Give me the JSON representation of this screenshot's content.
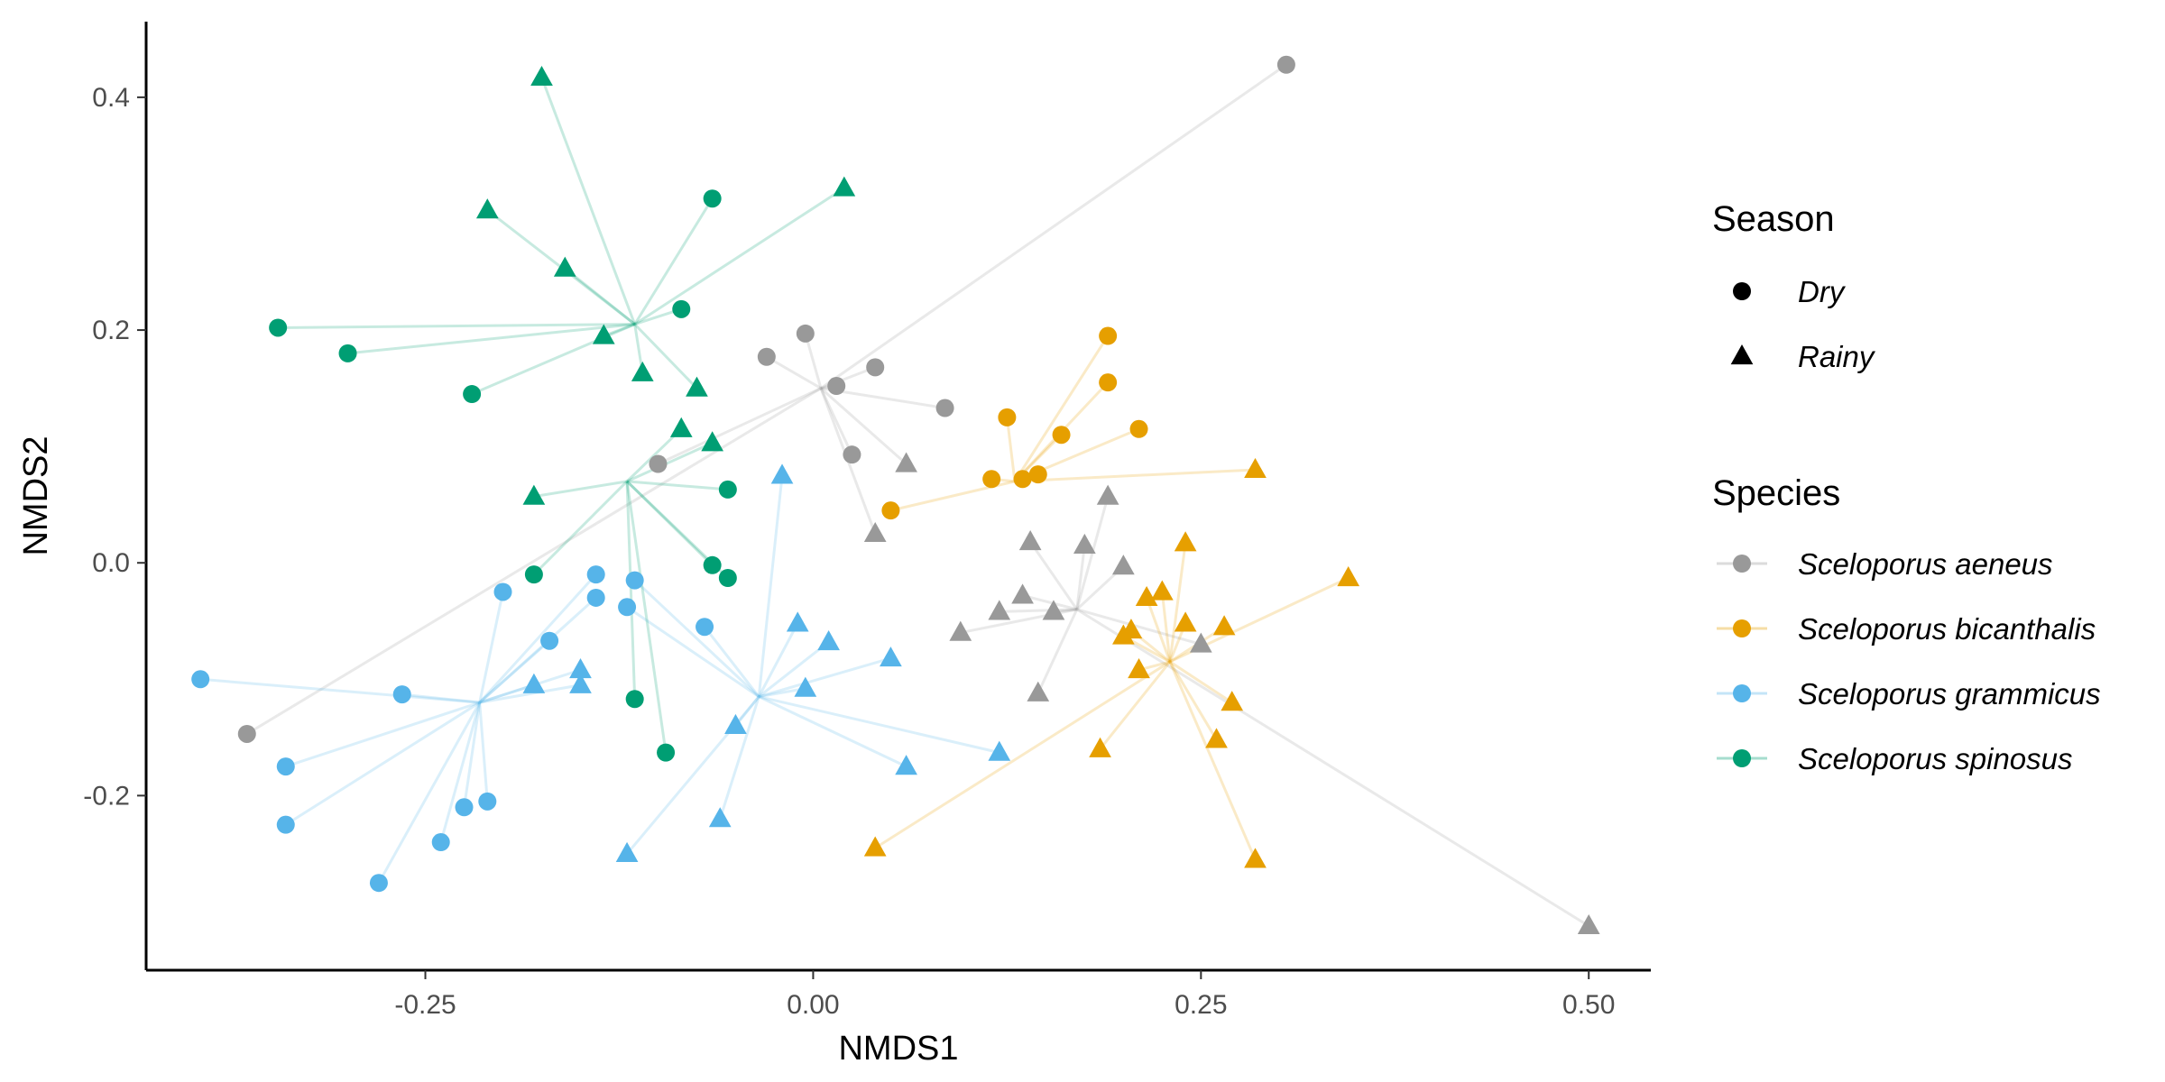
{
  "chart_data": {
    "type": "scatter",
    "xlabel": "NMDS1",
    "ylabel": "NMDS2",
    "xlim": [
      -0.43,
      0.54
    ],
    "ylim": [
      -0.35,
      0.465
    ],
    "x_ticks": [
      -0.25,
      0.0,
      0.25,
      0.5
    ],
    "x_tick_labels": [
      "-0.25",
      "0.00",
      "0.25",
      "0.50"
    ],
    "y_ticks": [
      -0.2,
      0.0,
      0.2,
      0.4
    ],
    "y_tick_labels": [
      "-0.2",
      "0.0",
      "0.2",
      "0.4"
    ],
    "grid": false,
    "legend_placement": "right",
    "legend": {
      "season_title": "Season",
      "season_entries": [
        {
          "label": "Dry",
          "shape": "circle"
        },
        {
          "label": "Rainy",
          "shape": "triangle"
        }
      ],
      "species_title": "Species"
    },
    "series": [
      {
        "name": "Sceloporus aeneus",
        "color": "#999999",
        "centroids": [
          {
            "x": 0.005,
            "y": 0.15
          },
          {
            "x": 0.17,
            "y": -0.04
          }
        ],
        "dry": [
          [
            0.305,
            0.428
          ],
          [
            -0.365,
            -0.147
          ],
          [
            -0.1,
            0.085
          ],
          [
            -0.03,
            0.177
          ],
          [
            -0.005,
            0.197
          ],
          [
            0.015,
            0.152
          ],
          [
            0.04,
            0.168
          ],
          [
            0.085,
            0.133
          ],
          [
            0.025,
            0.093
          ]
        ],
        "rainy": [
          [
            0.06,
            0.085
          ],
          [
            0.04,
            0.025
          ],
          [
            0.14,
            0.018
          ],
          [
            0.175,
            0.015
          ],
          [
            0.19,
            0.057
          ],
          [
            0.2,
            -0.003
          ],
          [
            0.12,
            -0.042
          ],
          [
            0.135,
            -0.028
          ],
          [
            0.155,
            -0.042
          ],
          [
            0.095,
            -0.06
          ],
          [
            0.145,
            -0.112
          ],
          [
            0.25,
            -0.07
          ],
          [
            0.5,
            -0.312
          ]
        ]
      },
      {
        "name": "Sceloporus bicanthalis",
        "color": "#E69F00",
        "centroids": [
          {
            "x": 0.13,
            "y": 0.07
          },
          {
            "x": 0.23,
            "y": -0.085
          }
        ],
        "dry": [
          [
            0.19,
            0.195
          ],
          [
            0.19,
            0.155
          ],
          [
            0.21,
            0.115
          ],
          [
            0.125,
            0.125
          ],
          [
            0.16,
            0.11
          ],
          [
            0.115,
            0.072
          ],
          [
            0.135,
            0.072
          ],
          [
            0.145,
            0.076
          ],
          [
            0.05,
            0.045
          ]
        ],
        "rainy": [
          [
            0.285,
            0.08
          ],
          [
            0.345,
            -0.013
          ],
          [
            0.24,
            0.017
          ],
          [
            0.225,
            -0.025
          ],
          [
            0.215,
            -0.03
          ],
          [
            0.24,
            -0.052
          ],
          [
            0.265,
            -0.055
          ],
          [
            0.2,
            -0.063
          ],
          [
            0.205,
            -0.058
          ],
          [
            0.21,
            -0.092
          ],
          [
            0.27,
            -0.12
          ],
          [
            0.26,
            -0.152
          ],
          [
            0.185,
            -0.16
          ],
          [
            0.285,
            -0.255
          ],
          [
            0.04,
            -0.245
          ]
        ]
      },
      {
        "name": "Sceloporus grammicus",
        "color": "#56B4E9",
        "centroids": [
          {
            "x": -0.215,
            "y": -0.12
          },
          {
            "x": -0.035,
            "y": -0.115
          }
        ],
        "dry": [
          [
            -0.2,
            -0.025
          ],
          [
            -0.14,
            -0.01
          ],
          [
            -0.14,
            -0.03
          ],
          [
            -0.115,
            -0.015
          ],
          [
            -0.12,
            -0.038
          ],
          [
            -0.17,
            -0.067
          ],
          [
            -0.07,
            -0.055
          ],
          [
            -0.265,
            -0.113
          ],
          [
            -0.395,
            -0.1
          ],
          [
            -0.34,
            -0.175
          ],
          [
            -0.34,
            -0.225
          ],
          [
            -0.21,
            -0.205
          ],
          [
            -0.225,
            -0.21
          ],
          [
            -0.24,
            -0.24
          ],
          [
            -0.28,
            -0.275
          ]
        ],
        "rainy": [
          [
            -0.02,
            0.075
          ],
          [
            -0.01,
            -0.052
          ],
          [
            0.01,
            -0.068
          ],
          [
            0.05,
            -0.082
          ],
          [
            -0.005,
            -0.108
          ],
          [
            -0.18,
            -0.105
          ],
          [
            -0.15,
            -0.092
          ],
          [
            -0.15,
            -0.105
          ],
          [
            -0.05,
            -0.14
          ],
          [
            0.06,
            -0.175
          ],
          [
            0.12,
            -0.163
          ],
          [
            -0.06,
            -0.22
          ],
          [
            -0.12,
            -0.25
          ]
        ]
      },
      {
        "name": "Sceloporus spinosus",
        "color": "#009E73",
        "centroids": [
          {
            "x": -0.12,
            "y": 0.07
          },
          {
            "x": -0.115,
            "y": 0.205
          }
        ],
        "dry": [
          [
            -0.065,
            0.313
          ],
          [
            -0.085,
            0.218
          ],
          [
            -0.345,
            0.202
          ],
          [
            -0.3,
            0.18
          ],
          [
            -0.22,
            0.145
          ],
          [
            -0.055,
            0.063
          ],
          [
            -0.18,
            -0.01
          ],
          [
            -0.065,
            -0.002
          ],
          [
            -0.055,
            -0.013
          ],
          [
            -0.115,
            -0.117
          ],
          [
            -0.095,
            -0.163
          ]
        ],
        "rainy": [
          [
            -0.175,
            0.417
          ],
          [
            -0.21,
            0.303
          ],
          [
            -0.16,
            0.253
          ],
          [
            -0.135,
            0.195
          ],
          [
            -0.11,
            0.163
          ],
          [
            -0.075,
            0.15
          ],
          [
            -0.065,
            0.103
          ],
          [
            -0.085,
            0.115
          ],
          [
            -0.18,
            0.057
          ],
          [
            0.02,
            0.322
          ]
        ]
      }
    ]
  }
}
